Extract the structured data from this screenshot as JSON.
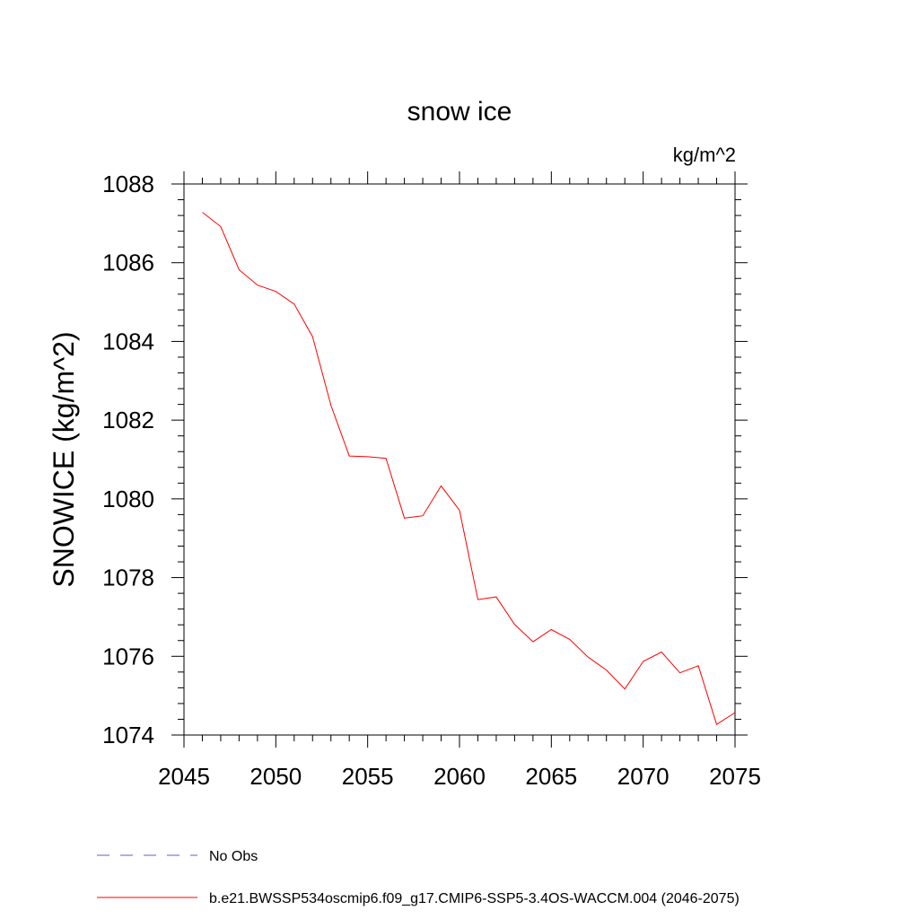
{
  "chart_data": {
    "type": "line",
    "title": "snow ice",
    "units": "kg/m^2",
    "ylabel": "SNOWICE  (kg/m^2)",
    "xlabel": "",
    "xlim": [
      2045,
      2075
    ],
    "ylim": [
      1074,
      1088
    ],
    "xticks": [
      2045,
      2050,
      2055,
      2060,
      2065,
      2070,
      2075
    ],
    "yticks": [
      1074,
      1076,
      1078,
      1080,
      1082,
      1084,
      1086,
      1088
    ],
    "xtick_labels": [
      "2045",
      "2050",
      "2055",
      "2060",
      "2065",
      "2070",
      "2075"
    ],
    "ytick_labels": [
      "1074",
      "1076",
      "1078",
      "1080",
      "1082",
      "1084",
      "1086",
      "1088"
    ],
    "grid": false,
    "legend_position": "bottom-left",
    "series": [
      {
        "name": "b.e21.BWSSP534oscmip6.f09_g17.CMIP6-SSP5-3.4OS-WACCM.004 (2046-2075)",
        "color": "#ff0000",
        "style": "solid",
        "x": [
          2046,
          2047,
          2048,
          2049,
          2050,
          2051,
          2052,
          2053,
          2054,
          2055,
          2056,
          2057,
          2058,
          2059,
          2060,
          2061,
          2062,
          2063,
          2064,
          2065,
          2066,
          2067,
          2068,
          2069,
          2070,
          2071,
          2072,
          2073,
          2074,
          2075
        ],
        "values": [
          1087.28,
          1086.92,
          1085.82,
          1085.43,
          1085.27,
          1084.95,
          1084.12,
          1082.38,
          1081.09,
          1081.07,
          1081.03,
          1079.51,
          1079.57,
          1080.33,
          1079.71,
          1077.44,
          1077.51,
          1076.81,
          1076.37,
          1076.68,
          1076.43,
          1075.98,
          1075.65,
          1075.17,
          1075.87,
          1076.11,
          1075.58,
          1075.76,
          1074.27,
          1074.57
        ]
      }
    ],
    "legend": [
      {
        "label": "No Obs",
        "color": "#6a5acd",
        "style": "dashed"
      },
      {
        "label": "b.e21.BWSSP534oscmip6.f09_g17.CMIP6-SSP5-3.4OS-WACCM.004 (2046-2075)",
        "color": "#ff0000",
        "style": "solid"
      }
    ]
  }
}
